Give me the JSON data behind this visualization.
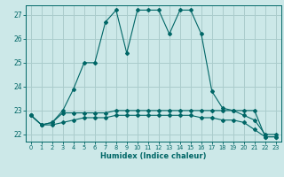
{
  "title": "",
  "xlabel": "Humidex (Indice chaleur)",
  "bg_color": "#cce8e8",
  "grid_color": "#aacccc",
  "line_color": "#006666",
  "xlim": [
    -0.5,
    23.5
  ],
  "ylim": [
    21.7,
    27.4
  ],
  "yticks": [
    22,
    23,
    24,
    25,
    26,
    27
  ],
  "xticks": [
    0,
    1,
    2,
    3,
    4,
    5,
    6,
    7,
    8,
    9,
    10,
    11,
    12,
    13,
    14,
    15,
    16,
    17,
    18,
    19,
    20,
    21,
    22,
    23
  ],
  "line1_x": [
    0,
    1,
    2,
    3,
    4,
    5,
    6,
    7,
    8,
    9,
    10,
    11,
    12,
    13,
    14,
    15,
    16,
    17,
    18,
    19,
    20,
    21,
    22,
    23
  ],
  "line1_y": [
    22.8,
    22.4,
    22.5,
    23.0,
    23.9,
    25.0,
    25.0,
    26.7,
    27.2,
    25.4,
    27.2,
    27.2,
    27.2,
    26.2,
    27.2,
    27.2,
    26.2,
    23.8,
    23.1,
    23.0,
    23.0,
    23.0,
    21.9,
    21.9
  ],
  "line2_x": [
    0,
    1,
    2,
    3,
    4,
    5,
    6,
    7,
    8,
    9,
    10,
    11,
    12,
    13,
    14,
    15,
    16,
    17,
    18,
    19,
    20,
    21,
    22,
    23
  ],
  "line2_y": [
    22.8,
    22.4,
    22.5,
    22.9,
    22.9,
    22.9,
    22.9,
    22.9,
    23.0,
    23.0,
    23.0,
    23.0,
    23.0,
    23.0,
    23.0,
    23.0,
    23.0,
    23.0,
    23.0,
    23.0,
    22.8,
    22.6,
    22.0,
    22.0
  ],
  "line3_x": [
    0,
    1,
    2,
    3,
    4,
    5,
    6,
    7,
    8,
    9,
    10,
    11,
    12,
    13,
    14,
    15,
    16,
    17,
    18,
    19,
    20,
    21,
    22,
    23
  ],
  "line3_y": [
    22.8,
    22.4,
    22.4,
    22.5,
    22.6,
    22.7,
    22.7,
    22.7,
    22.8,
    22.8,
    22.8,
    22.8,
    22.8,
    22.8,
    22.8,
    22.8,
    22.7,
    22.7,
    22.6,
    22.6,
    22.5,
    22.2,
    21.9,
    21.9
  ]
}
